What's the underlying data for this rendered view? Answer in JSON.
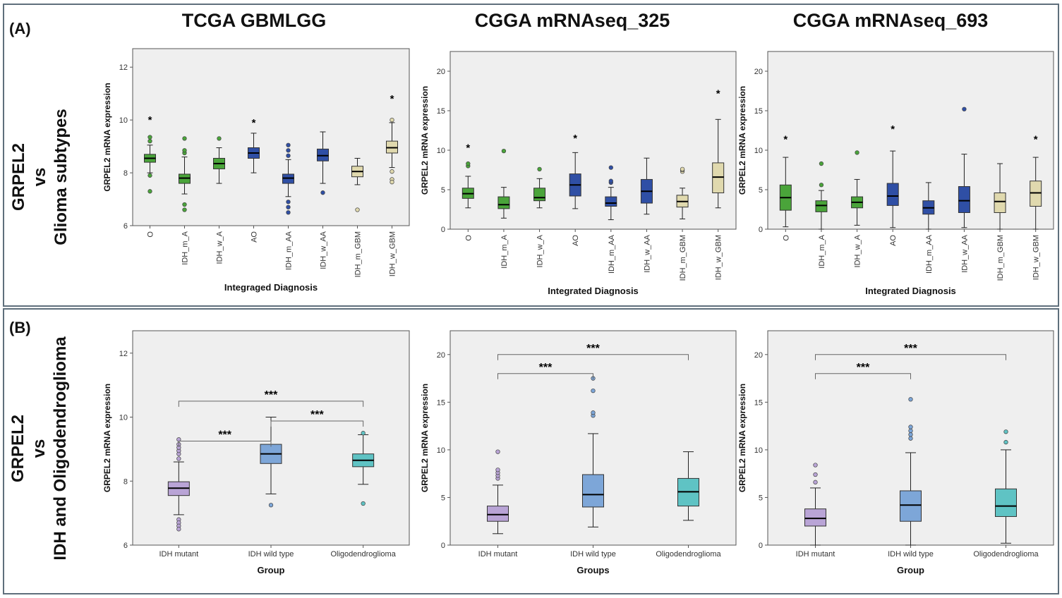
{
  "panels": {
    "a_label": "(A)",
    "b_label": "(B)"
  },
  "columns": [
    "TCGA GBMLGG",
    "CGGA mRNAseq_325",
    "CGGA mRNAseq_693"
  ],
  "row_labels": {
    "a": {
      "line1": "GRPEL2",
      "line2": "vs",
      "line3": "Glioma subtypes"
    },
    "b": {
      "line1": "GRPEL2",
      "line2": "vs",
      "line3": "IDH and Oligodendroglioma"
    }
  },
  "colors": {
    "green": "#4aa43a",
    "blue": "#2f4fa5",
    "tan": "#e0d9ae",
    "purple": "#b9a4d6",
    "lightblue": "#7da6d8",
    "teal": "#5fc3c4",
    "plot_bg": "#efefef"
  },
  "chart_data": [
    {
      "id": "A1",
      "type": "box",
      "title": "TCGA GBMLGG",
      "xlabel": "Integraged Diagnosis",
      "ylabel": "GRPEL2 mRNA expression",
      "ylim": [
        6,
        12.7
      ],
      "yticks": [
        6,
        8,
        10,
        12
      ],
      "categories": [
        "O",
        "IDH_m_A",
        "IDH_w_A",
        "AO",
        "IDH_m_AA",
        "IDH_w_AA",
        "IDH_m_GBM",
        "IDH_w_GBM"
      ],
      "colors": [
        "green",
        "green",
        "green",
        "blue",
        "blue",
        "blue",
        "tan",
        "tan"
      ],
      "boxes": [
        {
          "q1": 8.4,
          "med": 8.55,
          "q3": 8.7,
          "low": 8.0,
          "high": 9.05,
          "out": [
            9.2,
            9.35,
            7.9,
            7.3
          ],
          "star": true,
          "starY": 10
        },
        {
          "q1": 7.6,
          "med": 7.8,
          "q3": 7.95,
          "low": 7.2,
          "high": 8.6,
          "out": [
            8.75,
            8.85,
            9.3,
            6.8,
            6.6
          ],
          "star": false
        },
        {
          "q1": 8.15,
          "med": 8.35,
          "q3": 8.55,
          "low": 7.6,
          "high": 8.95,
          "out": [
            9.3
          ],
          "star": false
        },
        {
          "q1": 8.55,
          "med": 8.75,
          "q3": 8.95,
          "low": 8.0,
          "high": 9.5,
          "out": [],
          "star": true,
          "starY": 9.9
        },
        {
          "q1": 7.6,
          "med": 7.8,
          "q3": 7.95,
          "low": 7.1,
          "high": 8.5,
          "out": [
            8.65,
            8.85,
            9.05,
            6.9,
            6.7,
            6.5
          ],
          "star": false
        },
        {
          "q1": 8.45,
          "med": 8.65,
          "q3": 8.9,
          "low": 7.6,
          "high": 9.55,
          "out": [
            7.25
          ],
          "star": false
        },
        {
          "q1": 7.85,
          "med": 8.05,
          "q3": 8.25,
          "low": 7.55,
          "high": 8.55,
          "out": [
            6.6
          ],
          "star": false
        },
        {
          "q1": 8.75,
          "med": 8.95,
          "q3": 9.2,
          "low": 8.2,
          "high": 9.9,
          "out": [
            10.0,
            8.05,
            7.75,
            7.65
          ],
          "star": true,
          "starY": 10.8
        }
      ]
    },
    {
      "id": "A2",
      "type": "box",
      "title": "CGGA mRNAseq_325",
      "xlabel": "Integrated Diagnosis",
      "ylabel": "GRPEL2 mRNA expression",
      "ylim": [
        0,
        22.5
      ],
      "yticks": [
        0,
        5,
        10,
        15,
        20
      ],
      "categories": [
        "O",
        "IDH_m_A",
        "IDH_w_A",
        "AO",
        "IDH_m_AA",
        "IDH_w_AA",
        "IDH_m_GBM",
        "IDH_w_GBM"
      ],
      "colors": [
        "green",
        "green",
        "green",
        "blue",
        "blue",
        "blue",
        "tan",
        "tan"
      ],
      "boxes": [
        {
          "q1": 3.9,
          "med": 4.5,
          "q3": 5.2,
          "low": 2.7,
          "high": 6.7,
          "out": [
            8.0,
            8.3
          ],
          "star": true,
          "starY": 10.3
        },
        {
          "q1": 2.6,
          "med": 3.1,
          "q3": 4.1,
          "low": 1.4,
          "high": 5.3,
          "out": [
            9.9
          ],
          "star": false
        },
        {
          "q1": 3.6,
          "med": 4.0,
          "q3": 5.2,
          "low": 2.7,
          "high": 6.4,
          "out": [
            7.6
          ],
          "star": false
        },
        {
          "q1": 4.2,
          "med": 5.6,
          "q3": 7.0,
          "low": 2.6,
          "high": 9.7,
          "out": [],
          "star": true,
          "starY": 11.5
        },
        {
          "q1": 2.9,
          "med": 3.3,
          "q3": 4.1,
          "low": 1.2,
          "high": 5.3,
          "out": [
            5.9,
            6.1,
            7.8
          ],
          "star": false
        },
        {
          "q1": 3.3,
          "med": 4.8,
          "q3": 6.3,
          "low": 1.9,
          "high": 9.0,
          "out": [],
          "star": false
        },
        {
          "q1": 2.8,
          "med": 3.5,
          "q3": 4.3,
          "low": 1.3,
          "high": 5.2,
          "out": [
            7.3,
            7.5,
            7.6
          ],
          "star": false
        },
        {
          "q1": 4.6,
          "med": 6.6,
          "q3": 8.4,
          "low": 2.7,
          "high": 13.9,
          "out": [],
          "star": true,
          "starY": 17.2
        }
      ]
    },
    {
      "id": "A3",
      "type": "box",
      "title": "CGGA mRNAseq_693",
      "xlabel": "Integrated Diagnosis",
      "ylabel": "GRPEL2 mRNA expression",
      "ylim": [
        0,
        22.5
      ],
      "yticks": [
        0,
        5,
        10,
        15,
        20
      ],
      "categories": [
        "O",
        "IDH_m_A",
        "IDH_w_A",
        "AO",
        "IDH_m_AA",
        "IDH_w_AA",
        "IDH_m_GBM",
        "IDH_w_GBM"
      ],
      "colors": [
        "green",
        "green",
        "green",
        "blue",
        "blue",
        "blue",
        "tan",
        "tan"
      ],
      "boxes": [
        {
          "q1": 2.4,
          "med": 4.0,
          "q3": 5.6,
          "low": 0.3,
          "high": 9.1,
          "out": [],
          "star": true,
          "starY": 11.4
        },
        {
          "q1": 2.2,
          "med": 3.0,
          "q3": 3.6,
          "low": 0.0,
          "high": 4.9,
          "out": [
            5.6,
            8.3
          ],
          "star": false
        },
        {
          "q1": 2.7,
          "med": 3.4,
          "q3": 4.1,
          "low": 0.5,
          "high": 6.3,
          "out": [
            9.7
          ],
          "star": false
        },
        {
          "q1": 3.0,
          "med": 4.2,
          "q3": 5.8,
          "low": 0.2,
          "high": 9.9,
          "out": [],
          "star": true,
          "starY": 12.7
        },
        {
          "q1": 1.9,
          "med": 2.7,
          "q3": 3.6,
          "low": 0.0,
          "high": 5.9,
          "out": [],
          "star": false
        },
        {
          "q1": 2.1,
          "med": 3.6,
          "q3": 5.4,
          "low": 0.2,
          "high": 9.5,
          "out": [
            15.2
          ],
          "star": false
        },
        {
          "q1": 2.1,
          "med": 3.5,
          "q3": 4.6,
          "low": 0.0,
          "high": 8.3,
          "out": [],
          "star": false
        },
        {
          "q1": 2.9,
          "med": 4.6,
          "q3": 6.1,
          "low": 0.0,
          "high": 9.1,
          "out": [],
          "star": true,
          "starY": 11.4
        }
      ]
    },
    {
      "id": "B1",
      "type": "box",
      "xlabel": "Group",
      "ylabel": "GRPEL2 mRNA expression",
      "ylim": [
        6,
        12.7
      ],
      "yticks": [
        6,
        8,
        10,
        12
      ],
      "categories": [
        "IDH mutant",
        "IDH wild type",
        "Oligodendroglioma"
      ],
      "colors": [
        "purple",
        "lightblue",
        "teal"
      ],
      "boxes": [
        {
          "q1": 7.55,
          "med": 7.78,
          "q3": 7.98,
          "low": 6.95,
          "high": 8.6,
          "out": [
            8.7,
            8.85,
            8.95,
            9.05,
            9.15,
            9.3,
            6.8,
            6.7,
            6.6,
            6.5
          ]
        },
        {
          "q1": 8.55,
          "med": 8.85,
          "q3": 9.15,
          "low": 7.6,
          "high": 10.0,
          "out": [
            7.25
          ]
        },
        {
          "q1": 8.45,
          "med": 8.65,
          "q3": 8.85,
          "low": 7.9,
          "high": 9.45,
          "out": [
            9.5,
            7.3
          ]
        }
      ],
      "brackets": [
        {
          "from": 0,
          "to": 1,
          "y": 9.25,
          "label": "***"
        },
        {
          "from": 1,
          "to": 2,
          "y": 9.88,
          "label": "***"
        },
        {
          "from": 0,
          "to": 2,
          "y": 10.5,
          "label": "***"
        }
      ]
    },
    {
      "id": "B2",
      "type": "box",
      "xlabel": "Groups",
      "ylabel": "GRPEL2 mRNA expression",
      "ylim": [
        0,
        22.5
      ],
      "yticks": [
        0,
        5,
        10,
        15,
        20
      ],
      "categories": [
        "IDH mutant",
        "IDH wild type",
        "Oligodendroglioma"
      ],
      "colors": [
        "purple",
        "lightblue",
        "teal"
      ],
      "boxes": [
        {
          "q1": 2.5,
          "med": 3.2,
          "q3": 4.1,
          "low": 1.2,
          "high": 6.3,
          "out": [
            7.0,
            7.3,
            7.6,
            7.9,
            9.8
          ]
        },
        {
          "q1": 4.0,
          "med": 5.3,
          "q3": 7.4,
          "low": 1.9,
          "high": 11.7,
          "out": [
            13.6,
            13.9,
            16.2,
            17.5
          ]
        },
        {
          "q1": 4.1,
          "med": 5.6,
          "q3": 7.0,
          "low": 2.6,
          "high": 9.8,
          "out": []
        }
      ],
      "brackets": [
        {
          "from": 0,
          "to": 1,
          "y": 18.0,
          "label": "***"
        },
        {
          "from": 0,
          "to": 2,
          "y": 20.0,
          "label": "***"
        }
      ]
    },
    {
      "id": "B3",
      "type": "box",
      "xlabel": "Group",
      "ylabel": "GRPEL2 mRNA expression",
      "ylim": [
        0,
        22.5
      ],
      "yticks": [
        0,
        5,
        10,
        15,
        20
      ],
      "categories": [
        "IDH mutant",
        "IDH wild type",
        "Oligodendroglioma"
      ],
      "colors": [
        "purple",
        "lightblue",
        "teal"
      ],
      "boxes": [
        {
          "q1": 2.0,
          "med": 2.8,
          "q3": 3.8,
          "low": 0.0,
          "high": 6.0,
          "out": [
            6.6,
            7.4,
            8.4
          ]
        },
        {
          "q1": 2.5,
          "med": 4.2,
          "q3": 5.7,
          "low": 0.0,
          "high": 9.7,
          "out": [
            11.2,
            11.6,
            12.0,
            12.4,
            15.3
          ]
        },
        {
          "q1": 3.0,
          "med": 4.1,
          "q3": 5.9,
          "low": 0.2,
          "high": 10.0,
          "out": [
            10.8,
            11.9
          ]
        }
      ],
      "brackets": [
        {
          "from": 0,
          "to": 1,
          "y": 18.0,
          "label": "***"
        },
        {
          "from": 0,
          "to": 2,
          "y": 20.0,
          "label": "***"
        }
      ]
    }
  ]
}
